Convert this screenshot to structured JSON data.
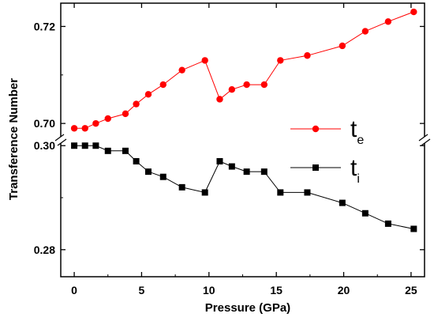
{
  "chart_data": {
    "type": "line",
    "xlabel": "Pressure (GPa)",
    "ylabel": "Transference Number",
    "x_ticks": [
      0,
      5,
      10,
      15,
      20,
      25
    ],
    "xlim": [
      -1,
      26
    ],
    "axis_break": true,
    "panels": [
      {
        "name": "upper",
        "ylim": [
          0.6966,
          0.7248
        ],
        "y_ticks": [
          0.7,
          0.72
        ],
        "y_tick_labels": [
          "0.70",
          "0.72"
        ]
      },
      {
        "name": "lower",
        "ylim": [
          0.2748,
          0.3011
        ],
        "y_ticks": [
          0.28,
          0.3
        ],
        "y_tick_labels": [
          "0.28",
          "0.30"
        ]
      }
    ],
    "series": [
      {
        "name": "te",
        "label_main": "t",
        "label_sub": "e",
        "panel": "upper",
        "color": "#ff0000",
        "marker": "circle",
        "x": [
          0.0,
          0.8,
          1.6,
          2.5,
          3.8,
          4.6,
          5.5,
          6.6,
          8.0,
          9.7,
          10.8,
          11.7,
          12.8,
          14.1,
          15.3,
          17.3,
          19.9,
          21.6,
          23.3,
          25.2
        ],
        "y": [
          0.699,
          0.699,
          0.7,
          0.701,
          0.702,
          0.704,
          0.706,
          0.708,
          0.711,
          0.713,
          0.705,
          0.707,
          0.708,
          0.708,
          0.713,
          0.714,
          0.716,
          0.719,
          0.721,
          0.723
        ]
      },
      {
        "name": "ti",
        "label_main": "t",
        "label_sub": "i",
        "panel": "lower",
        "color": "#000000",
        "marker": "square",
        "x": [
          0.0,
          0.8,
          1.6,
          2.5,
          3.8,
          4.6,
          5.5,
          6.6,
          8.0,
          9.7,
          10.8,
          11.7,
          12.8,
          14.1,
          15.3,
          17.3,
          19.9,
          21.6,
          23.3,
          25.2
        ],
        "y": [
          0.3,
          0.3,
          0.3,
          0.299,
          0.299,
          0.297,
          0.295,
          0.294,
          0.292,
          0.291,
          0.297,
          0.296,
          0.295,
          0.295,
          0.291,
          0.291,
          0.289,
          0.287,
          0.285,
          0.284
        ]
      }
    ],
    "legend_position": "right-middle"
  }
}
